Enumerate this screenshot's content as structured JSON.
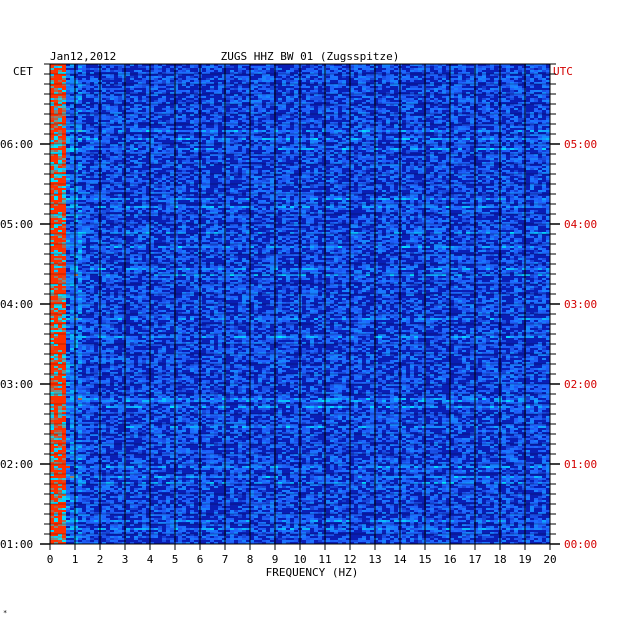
{
  "header": {
    "date": "Jan12,2012",
    "station": "ZUGS HHZ BW 01 (Zugsspitze)",
    "left_zone": "CET",
    "right_zone": "UTC"
  },
  "chart_data": {
    "type": "heatmap",
    "title": "ZUGS HHZ BW 01 (Zugsspitze)",
    "date": "Jan12,2012",
    "xlabel": "FREQUENCY (HZ)",
    "xlim": [
      0,
      20
    ],
    "x_ticks": [
      "0",
      "1",
      "2",
      "3",
      "4",
      "5",
      "6",
      "7",
      "8",
      "9",
      "10",
      "11",
      "12",
      "13",
      "14",
      "15",
      "16",
      "17",
      "18",
      "19",
      "20"
    ],
    "left_axis_label": "CET",
    "left_ticks": [
      "01:00",
      "02:00",
      "03:00",
      "04:00",
      "05:00",
      "06:00"
    ],
    "right_axis_label": "UTC",
    "right_ticks": [
      "00:00",
      "01:00",
      "02:00",
      "03:00",
      "04:00",
      "05:00"
    ],
    "time_range_utc_hours": [
      0,
      6
    ],
    "colors": {
      "background": "#0a1eb4",
      "low": "#0a14a0",
      "mid": "#1e64ff",
      "high": "#00e6ff",
      "peak": "#ff3000",
      "grid": "#000000",
      "utc_labels": "#d40000"
    }
  },
  "footer_mark": "*"
}
